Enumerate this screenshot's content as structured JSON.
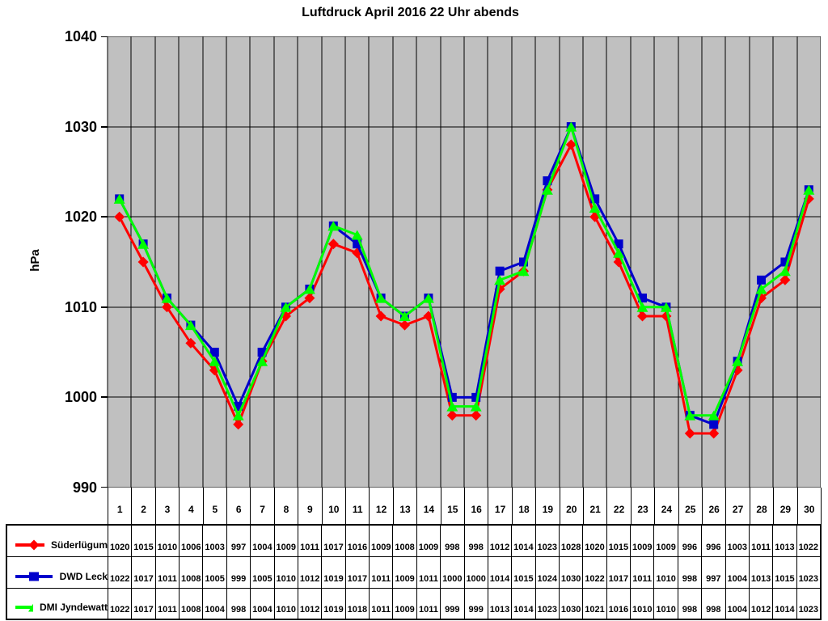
{
  "title": "Luftdruck April 2016 22 Uhr abends",
  "colors": {
    "plot_background": "#C0C0C0",
    "gridline": "#000000",
    "series_red": "#FF0000",
    "series_blue": "#0000CC",
    "series_green": "#00FF00"
  },
  "chart_data": {
    "type": "line",
    "title": "Luftdruck April 2016 22 Uhr abends",
    "xlabel": "",
    "ylabel": "hPa",
    "ylim": [
      990,
      1040
    ],
    "yticks": [
      1040,
      1030,
      1020,
      1010,
      1000,
      990
    ],
    "grid": true,
    "legend_position": "table-left",
    "plot_bg": "#C0C0C0",
    "categories": [
      "1",
      "2",
      "3",
      "4",
      "5",
      "6",
      "7",
      "8",
      "9",
      "10",
      "11",
      "12",
      "13",
      "14",
      "15",
      "16",
      "17",
      "18",
      "19",
      "20",
      "21",
      "22",
      "23",
      "24",
      "25",
      "26",
      "27",
      "28",
      "29",
      "30"
    ],
    "series": [
      {
        "name": "Süderlügum",
        "color": "#FF0000",
        "marker": "diamond",
        "values": [
          1020,
          1015,
          1010,
          1006,
          1003,
          997,
          1004,
          1009,
          1011,
          1017,
          1016,
          1009,
          1008,
          1009,
          998,
          998,
          1012,
          1014,
          1023,
          1028,
          1020,
          1015,
          1009,
          1009,
          996,
          996,
          1003,
          1011,
          1013,
          1022
        ]
      },
      {
        "name": "DWD Leck",
        "color": "#0000CC",
        "marker": "square",
        "values": [
          1022,
          1017,
          1011,
          1008,
          1005,
          999,
          1005,
          1010,
          1012,
          1019,
          1017,
          1011,
          1009,
          1011,
          1000,
          1000,
          1014,
          1015,
          1024,
          1030,
          1022,
          1017,
          1011,
          1010,
          998,
          997,
          1004,
          1013,
          1015,
          1023
        ]
      },
      {
        "name": "DMI Jyndewatt",
        "color": "#00FF00",
        "marker": "triangle",
        "values": [
          1022,
          1017,
          1011,
          1008,
          1004,
          998,
          1004,
          1010,
          1012,
          1019,
          1018,
          1011,
          1009,
          1011,
          999,
          999,
          1013,
          1014,
          1023,
          1030,
          1021,
          1016,
          1010,
          1010,
          998,
          998,
          1004,
          1012,
          1014,
          1023
        ]
      }
    ]
  }
}
